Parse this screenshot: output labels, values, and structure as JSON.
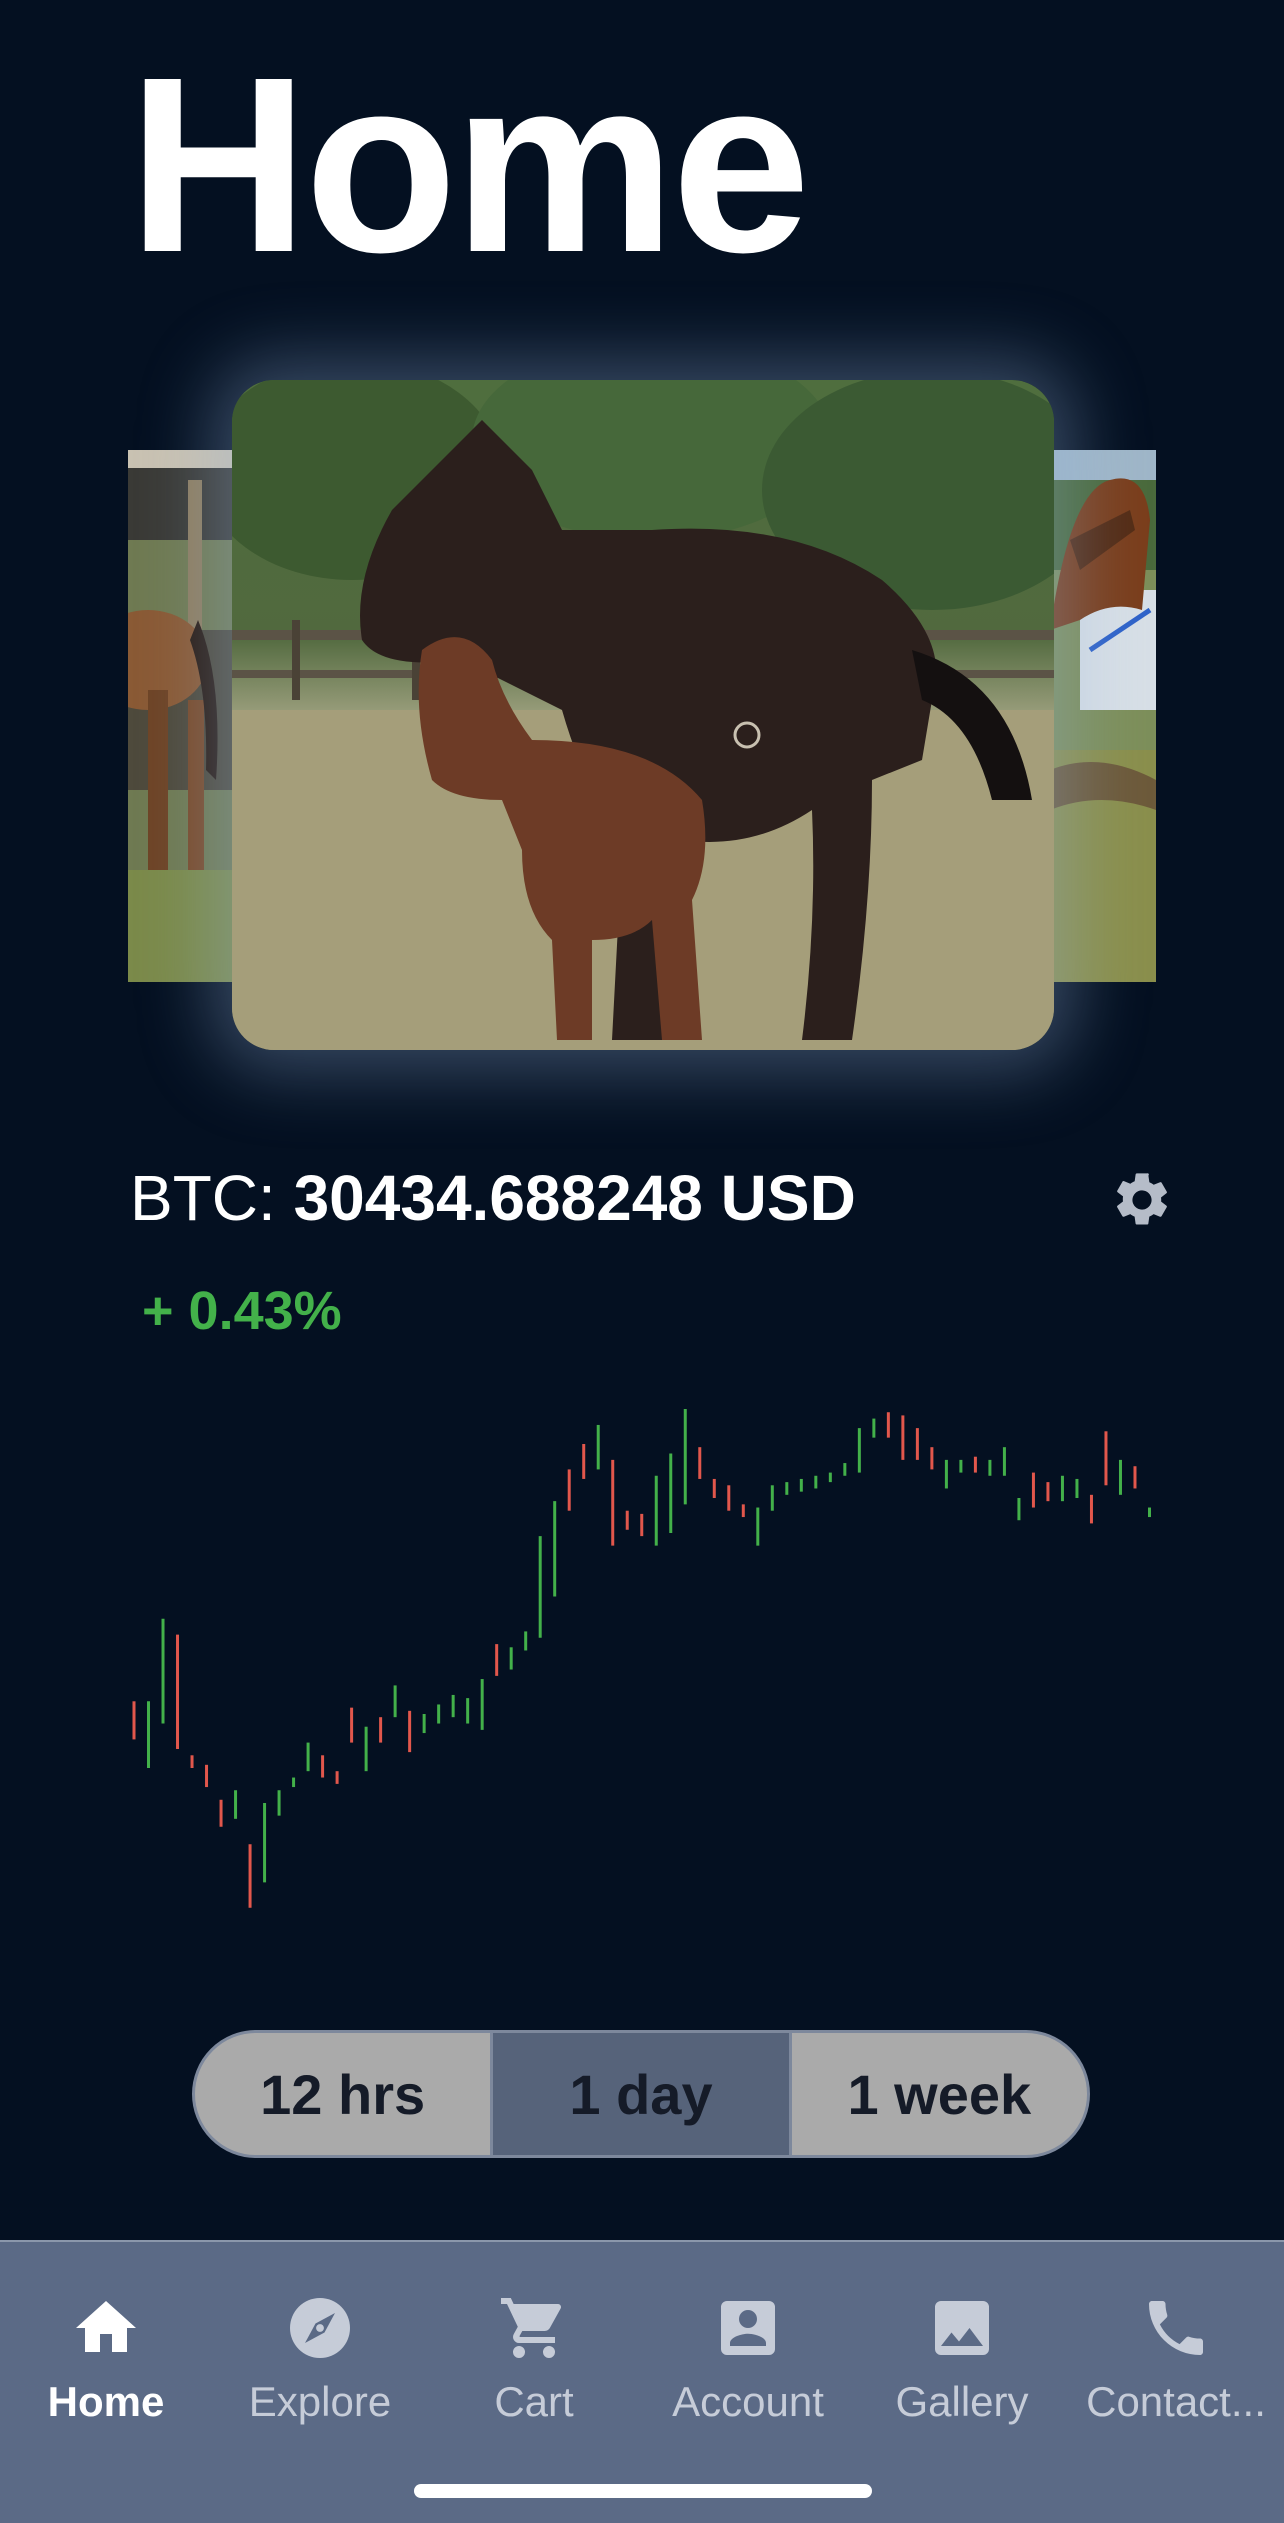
{
  "page": {
    "title": "Home"
  },
  "carousel": {
    "images": [
      "photo of horses in a paddock",
      "mare and foal in a field",
      "horse with halter by a trailer"
    ]
  },
  "ticker": {
    "label": "BTC:",
    "value": "30434.688248 USD",
    "change": "+ 0.43%",
    "settings_icon": "gear-icon"
  },
  "chart_data": {
    "type": "candlestick",
    "up_color": "#43b14a",
    "down_color": "#e2574c",
    "candles": [
      [
        0,
        "d",
        1068,
        1056,
        1080
      ],
      [
        1,
        "u",
        1078,
        1056,
        1098
      ],
      [
        2,
        "u",
        1040,
        1004,
        1070
      ],
      [
        3,
        "d",
        1036,
        1014,
        1086
      ],
      [
        4,
        "d",
        1094,
        1090,
        1098
      ],
      [
        5,
        "d",
        1102,
        1096,
        1110
      ],
      [
        6,
        "d",
        1120,
        1118,
        1135
      ],
      [
        7,
        "u",
        1128,
        1112,
        1130
      ],
      [
        8,
        "d",
        1160,
        1146,
        1186
      ],
      [
        9,
        "u",
        1138,
        1120,
        1170
      ],
      [
        10,
        "u",
        1122,
        1112,
        1128
      ],
      [
        11,
        "u",
        1108,
        1104,
        1110
      ],
      [
        12,
        "u",
        1098,
        1082,
        1100
      ],
      [
        13,
        "d",
        1096,
        1090,
        1104
      ],
      [
        14,
        "d",
        1104,
        1100,
        1108
      ],
      [
        15,
        "d",
        1068,
        1060,
        1082
      ],
      [
        16,
        "u",
        1086,
        1072,
        1100
      ],
      [
        17,
        "d",
        1070,
        1066,
        1082
      ],
      [
        18,
        "u",
        1064,
        1046,
        1066
      ],
      [
        19,
        "d",
        1074,
        1062,
        1088
      ],
      [
        20,
        "u",
        1070,
        1064,
        1076
      ],
      [
        21,
        "u",
        1064,
        1058,
        1070
      ],
      [
        22,
        "u",
        1060,
        1052,
        1066
      ],
      [
        23,
        "u",
        1060,
        1054,
        1070
      ],
      [
        24,
        "u",
        1068,
        1042,
        1074
      ],
      [
        25,
        "d",
        1028,
        1020,
        1040
      ],
      [
        26,
        "u",
        1028,
        1022,
        1036
      ],
      [
        27,
        "u",
        1016,
        1012,
        1024
      ],
      [
        28,
        "u",
        984,
        952,
        1016
      ],
      [
        29,
        "u",
        938,
        930,
        990
      ],
      [
        30,
        "d",
        918,
        910,
        936
      ],
      [
        31,
        "d",
        904,
        894,
        916
      ],
      [
        32,
        "u",
        884,
        882,
        910
      ],
      [
        33,
        "d",
        912,
        904,
        958
      ],
      [
        34,
        "d",
        938,
        936,
        948
      ],
      [
        35,
        "d",
        944,
        938,
        952
      ],
      [
        36,
        "u",
        920,
        914,
        958
      ],
      [
        37,
        "u",
        912,
        900,
        950
      ],
      [
        38,
        "u",
        876,
        872,
        932
      ],
      [
        39,
        "d",
        902,
        896,
        916
      ],
      [
        40,
        "d",
        920,
        916,
        928
      ],
      [
        41,
        "d",
        928,
        920,
        936
      ],
      [
        42,
        "d",
        936,
        932,
        940
      ],
      [
        43,
        "u",
        944,
        934,
        958
      ],
      [
        44,
        "u",
        924,
        920,
        936
      ],
      [
        45,
        "u",
        922,
        918,
        926
      ],
      [
        46,
        "u",
        920,
        916,
        924
      ],
      [
        47,
        "u",
        918,
        914,
        922
      ],
      [
        48,
        "u",
        916,
        912,
        918
      ],
      [
        49,
        "u",
        912,
        906,
        914
      ],
      [
        50,
        "u",
        898,
        884,
        912
      ],
      [
        51,
        "u",
        882,
        878,
        890
      ],
      [
        52,
        "d",
        876,
        874,
        890
      ],
      [
        53,
        "d",
        880,
        876,
        904
      ],
      [
        54,
        "d",
        888,
        884,
        904
      ],
      [
        55,
        "d",
        900,
        896,
        910
      ],
      [
        56,
        "u",
        906,
        904,
        922
      ],
      [
        57,
        "u",
        906,
        904,
        912
      ],
      [
        58,
        "d",
        906,
        902,
        912
      ],
      [
        59,
        "u",
        906,
        904,
        914
      ],
      [
        60,
        "u",
        902,
        896,
        914
      ],
      [
        61,
        "u",
        934,
        928,
        942
      ],
      [
        62,
        "d",
        914,
        912,
        934
      ],
      [
        63,
        "d",
        922,
        918,
        930
      ],
      [
        64,
        "u",
        918,
        914,
        930
      ],
      [
        65,
        "u",
        918,
        916,
        928
      ],
      [
        66,
        "d",
        930,
        926,
        944
      ],
      [
        67,
        "d",
        888,
        886,
        920
      ],
      [
        68,
        "u",
        906,
        904,
        926
      ],
      [
        69,
        "d",
        914,
        908,
        922
      ],
      [
        70,
        "u",
        938,
        934,
        940
      ]
    ],
    "x_range": [
      0,
      70
    ],
    "y_range_px_note": ""
  },
  "range_selector": {
    "options": [
      "12 hrs",
      "1 day",
      "1 week"
    ],
    "selected": "1 day"
  },
  "tabbar": {
    "items": [
      {
        "label": "Home",
        "icon": "home-icon",
        "active": true
      },
      {
        "label": "Explore",
        "icon": "compass-icon",
        "active": false
      },
      {
        "label": "Cart",
        "icon": "cart-icon",
        "active": false
      },
      {
        "label": "Account",
        "icon": "account-icon",
        "active": false
      },
      {
        "label": "Gallery",
        "icon": "image-icon",
        "active": false
      },
      {
        "label": "Contact...",
        "icon": "phone-icon",
        "active": false
      }
    ]
  }
}
